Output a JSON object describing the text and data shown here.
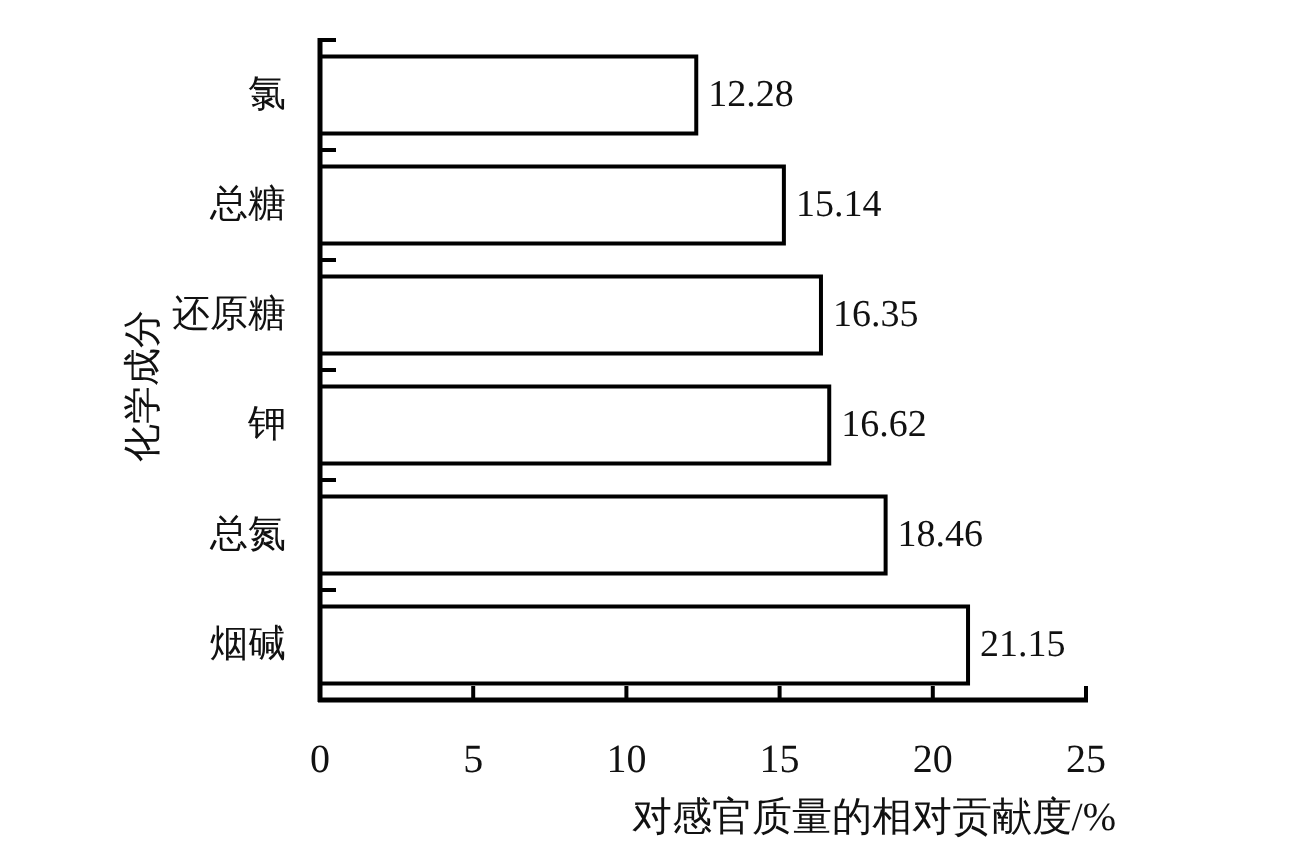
{
  "chart_data": {
    "type": "bar",
    "orientation": "horizontal",
    "categories": [
      "氯",
      "总糖",
      "还原糖",
      "钾",
      "总氮",
      "烟碱"
    ],
    "values": [
      12.28,
      15.14,
      16.35,
      16.62,
      18.46,
      21.15
    ],
    "color": "#ffffff",
    "xlim": [
      0,
      25
    ],
    "xticks": [
      0,
      5,
      10,
      15,
      20,
      25
    ],
    "xlabel": "对感官质量的相对贡献度/%",
    "ylabel": "化学成分",
    "data_labels": true
  }
}
